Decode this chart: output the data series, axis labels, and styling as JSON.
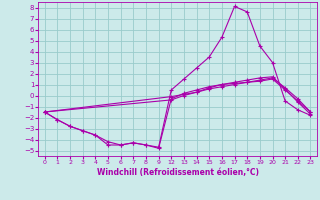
{
  "background_color": "#cceaea",
  "grid_color": "#99cccc",
  "line_color": "#aa00aa",
  "marker": "+",
  "markersize": 3,
  "linewidth": 0.8,
  "xlabel": "Windchill (Refroidissement éolien,°C)",
  "xlim": [
    -0.5,
    23.5
  ],
  "ylim": [
    -5.5,
    8.5
  ],
  "yticks": [
    -5,
    -4,
    -3,
    -2,
    -1,
    0,
    1,
    2,
    3,
    4,
    5,
    6,
    7,
    8
  ],
  "xtick_vals": [
    0,
    1,
    2,
    3,
    4,
    5,
    6,
    7,
    8,
    9,
    12,
    13,
    14,
    15,
    16,
    17,
    18,
    19,
    20,
    21,
    22,
    23
  ],
  "series": [
    {
      "x": [
        0,
        1,
        2,
        3,
        4,
        5,
        6,
        7,
        8,
        9,
        12,
        13,
        14,
        15,
        16,
        17,
        18,
        19,
        20,
        21,
        22,
        23
      ],
      "y": [
        -1.5,
        -2.2,
        -2.8,
        -3.2,
        -3.6,
        -4.5,
        -4.5,
        -4.3,
        -4.5,
        -4.8,
        -0.3,
        0.2,
        0.5,
        0.8,
        1.0,
        1.1,
        1.2,
        1.3,
        1.5,
        0.5,
        -0.5,
        -1.5
      ]
    },
    {
      "x": [
        0,
        1,
        2,
        3,
        4,
        5,
        6,
        7,
        8,
        9,
        12,
        13,
        14,
        15,
        16,
        17,
        18,
        19,
        20,
        21,
        22,
        23
      ],
      "y": [
        -1.5,
        -2.2,
        -2.8,
        -3.2,
        -3.6,
        -4.2,
        -4.5,
        -4.3,
        -4.5,
        -4.7,
        0.5,
        1.5,
        2.5,
        3.5,
        5.3,
        8.1,
        7.6,
        4.5,
        3.0,
        -0.5,
        -1.3,
        -1.8
      ]
    },
    {
      "x": [
        0,
        12,
        13,
        14,
        15,
        16,
        17,
        18,
        19,
        20,
        21,
        22,
        23
      ],
      "y": [
        -1.5,
        -0.1,
        0.1,
        0.3,
        0.6,
        0.8,
        1.0,
        1.2,
        1.4,
        1.6,
        0.7,
        -0.3,
        -1.5
      ]
    },
    {
      "x": [
        0,
        12,
        13,
        14,
        15,
        16,
        17,
        18,
        19,
        20,
        21,
        22,
        23
      ],
      "y": [
        -1.5,
        -0.4,
        0.0,
        0.3,
        0.7,
        1.0,
        1.2,
        1.4,
        1.6,
        1.7,
        0.6,
        -0.6,
        -1.7
      ]
    }
  ]
}
